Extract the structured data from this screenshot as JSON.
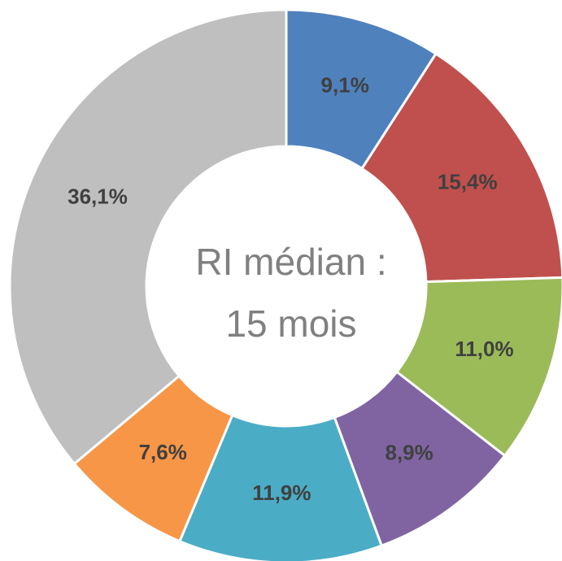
{
  "chart_data": {
    "type": "donut",
    "values": [
      9.1,
      15.4,
      11.0,
      8.9,
      11.9,
      7.6,
      36.1
    ],
    "value_labels": [
      "9,1%",
      "15,4%",
      "11,0%",
      "8,9%",
      "11,9%",
      "7,6%",
      "36,1%"
    ],
    "colors": [
      "#4f81bd",
      "#c0504d",
      "#9bbb59",
      "#8064a2",
      "#4bacc6",
      "#f79646",
      "#bfbfbf"
    ],
    "center_text": [
      "RI médian :",
      "15 mois"
    ]
  }
}
